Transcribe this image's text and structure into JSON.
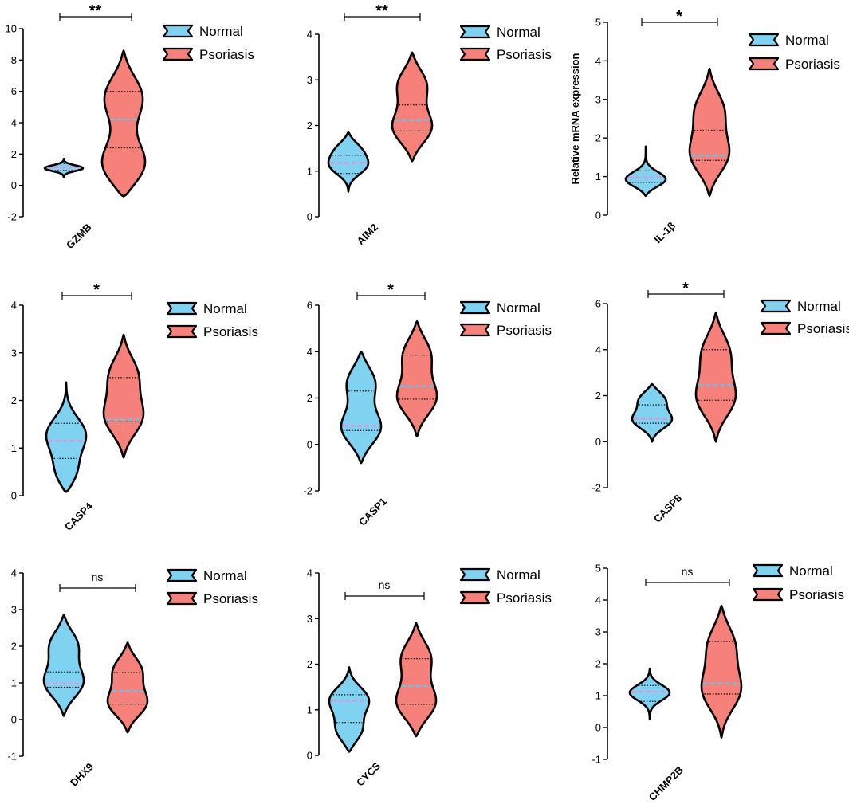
{
  "colors": {
    "normal_fill": "#7fd3f0",
    "psoriasis_fill": "#f5817a",
    "outline": "#000000",
    "median_normal": "#e58fd8",
    "median_psoriasis": "#5cc8f0",
    "quartile": "#000000"
  },
  "legend": {
    "normal": "Normal",
    "psoriasis": "Psoriasis"
  },
  "chart_data": [
    {
      "type": "violin",
      "gene": "GZMB",
      "ylabel": "",
      "ylim": [
        -2,
        10
      ],
      "yticks": [
        -2,
        0,
        2,
        4,
        6,
        8,
        10
      ],
      "significance": "**",
      "series": [
        {
          "name": "Normal",
          "min": 0.5,
          "max": 1.7,
          "median": 1.15,
          "q1": 0.95,
          "q3": 1.4,
          "peaks": [
            1.1
          ]
        },
        {
          "name": "Psoriasis",
          "min": -0.7,
          "max": 8.6,
          "median": 4.2,
          "q1": 2.4,
          "q3": 6.0,
          "peaks": [
            1.0,
            5.8
          ]
        }
      ]
    },
    {
      "type": "violin",
      "gene": "AIM2",
      "ylabel": "",
      "ylim": [
        0,
        4
      ],
      "yticks": [
        0,
        1,
        2,
        3,
        4
      ],
      "significance": "**",
      "series": [
        {
          "name": "Normal",
          "min": 0.55,
          "max": 1.85,
          "median": 1.18,
          "q1": 0.95,
          "q3": 1.35,
          "peaks": [
            1.1,
            1.5
          ]
        },
        {
          "name": "Psoriasis",
          "min": 1.22,
          "max": 3.6,
          "median": 2.12,
          "q1": 1.88,
          "q3": 2.45,
          "peaks": [
            1.9,
            2.95
          ]
        }
      ]
    },
    {
      "type": "violin",
      "gene": "IL-1β",
      "ylabel": "Relative mRNA expression",
      "ylim": [
        0,
        5
      ],
      "yticks": [
        0,
        1,
        2,
        3,
        4,
        5
      ],
      "significance": "*",
      "series": [
        {
          "name": "Normal",
          "min": 0.5,
          "max": 1.78,
          "median": 0.98,
          "q1": 0.85,
          "q3": 1.15,
          "peaks": [
            0.9
          ]
        },
        {
          "name": "Psoriasis",
          "min": 0.5,
          "max": 3.8,
          "median": 1.55,
          "q1": 1.42,
          "q3": 2.2,
          "peaks": [
            1.5,
            2.8
          ]
        }
      ]
    },
    {
      "type": "violin",
      "gene": "CASP4",
      "ylabel": "",
      "ylim": [
        0,
        4
      ],
      "yticks": [
        0,
        1,
        2,
        3,
        4
      ],
      "significance": "*",
      "series": [
        {
          "name": "Normal",
          "min": 0.08,
          "max": 2.38,
          "median": 1.15,
          "q1": 0.78,
          "q3": 1.52,
          "peaks": [
            1.3,
            0.4
          ]
        },
        {
          "name": "Psoriasis",
          "min": 0.8,
          "max": 3.38,
          "median": 1.6,
          "q1": 1.55,
          "q3": 2.48,
          "peaks": [
            1.6,
            2.6
          ]
        }
      ]
    },
    {
      "type": "violin",
      "gene": "CASP1",
      "ylabel": "",
      "ylim": [
        -2,
        6
      ],
      "yticks": [
        -2,
        0,
        2,
        4,
        6
      ],
      "significance": "*",
      "series": [
        {
          "name": "Normal",
          "min": -0.8,
          "max": 4.0,
          "median": 0.8,
          "q1": 0.6,
          "q3": 2.3,
          "peaks": [
            0.6,
            2.8
          ]
        },
        {
          "name": "Psoriasis",
          "min": 0.35,
          "max": 5.3,
          "median": 2.5,
          "q1": 1.95,
          "q3": 3.85,
          "peaks": [
            1.9,
            4.0
          ]
        }
      ]
    },
    {
      "type": "violin",
      "gene": "CASP8",
      "ylabel": "",
      "ylim": [
        -2,
        6
      ],
      "yticks": [
        -2,
        0,
        2,
        4,
        6
      ],
      "significance": "*",
      "series": [
        {
          "name": "Normal",
          "min": 0.0,
          "max": 2.5,
          "median": 1.0,
          "q1": 0.8,
          "q3": 1.6,
          "peaks": [
            0.9,
            1.9
          ]
        },
        {
          "name": "Psoriasis",
          "min": 0.0,
          "max": 5.6,
          "median": 2.45,
          "q1": 1.8,
          "q3": 4.0,
          "peaks": [
            1.8,
            4.0
          ]
        }
      ]
    },
    {
      "type": "violin",
      "gene": "DHX9",
      "ylabel": "",
      "ylim": [
        -1,
        4
      ],
      "yticks": [
        -1,
        0,
        1,
        2,
        3,
        4
      ],
      "significance": "ns",
      "series": [
        {
          "name": "Normal",
          "min": 0.1,
          "max": 2.85,
          "median": 0.98,
          "q1": 0.88,
          "q3": 1.3,
          "peaks": [
            0.95,
            2.1
          ]
        },
        {
          "name": "Psoriasis",
          "min": -0.35,
          "max": 2.1,
          "median": 0.78,
          "q1": 0.42,
          "q3": 1.28,
          "peaks": [
            0.4,
            1.4
          ]
        }
      ]
    },
    {
      "type": "violin",
      "gene": "CYCS",
      "ylabel": "",
      "ylim": [
        0,
        4
      ],
      "yticks": [
        0,
        1,
        2,
        3,
        4
      ],
      "significance": "ns",
      "series": [
        {
          "name": "Normal",
          "min": 0.08,
          "max": 1.93,
          "median": 1.2,
          "q1": 0.72,
          "q3": 1.33,
          "peaks": [
            1.25,
            0.5
          ]
        },
        {
          "name": "Psoriasis",
          "min": 0.42,
          "max": 2.9,
          "median": 1.52,
          "q1": 1.12,
          "q3": 2.12,
          "peaks": [
            1.1,
            2.2
          ]
        }
      ]
    },
    {
      "type": "violin",
      "gene": "CHMP2B",
      "ylabel": "",
      "ylim": [
        -1,
        5
      ],
      "yticks": [
        -1,
        0,
        1,
        2,
        3,
        4,
        5
      ],
      "significance": "ns",
      "series": [
        {
          "name": "Normal",
          "min": 0.25,
          "max": 1.85,
          "median": 1.12,
          "q1": 0.82,
          "q3": 1.32,
          "peaks": [
            1.1
          ]
        },
        {
          "name": "Psoriasis",
          "min": -0.32,
          "max": 3.82,
          "median": 1.38,
          "q1": 1.05,
          "q3": 2.7,
          "peaks": [
            1.1,
            2.7
          ]
        }
      ]
    }
  ]
}
